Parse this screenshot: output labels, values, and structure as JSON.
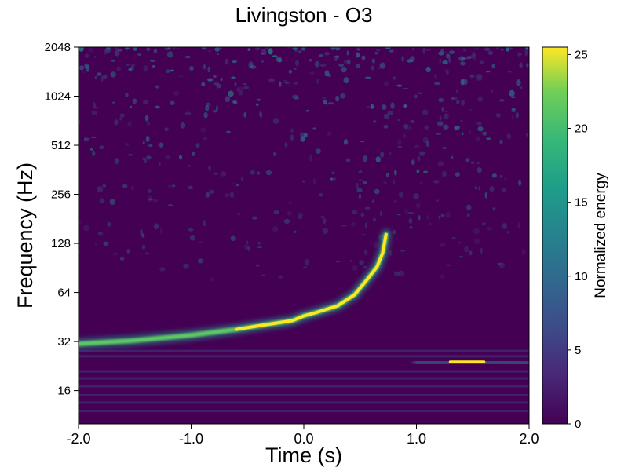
{
  "chart_data": {
    "type": "heatmap",
    "title": "Livingston - O3",
    "xlabel": "Time (s)",
    "ylabel": "Frequency (Hz)",
    "colorbar_label": "Normalized energy",
    "xlim": [
      -2.0,
      2.0
    ],
    "ylim": [
      10,
      2048
    ],
    "yscale": "log2",
    "x_ticks": [
      -2.0,
      -1.0,
      0.0,
      1.0,
      2.0
    ],
    "x_tick_labels": [
      "-2.0",
      "-1.0",
      "0.0",
      "1.0",
      "2.0"
    ],
    "y_ticks": [
      16,
      32,
      64,
      128,
      256,
      512,
      1024,
      2048
    ],
    "y_tick_labels": [
      "16",
      "32",
      "64",
      "128",
      "256",
      "512",
      "1024",
      "2048"
    ],
    "clim": [
      0,
      25.5
    ],
    "colorbar_ticks": [
      0,
      5,
      10,
      15,
      20,
      25
    ],
    "colorbar_tick_labels": [
      "0",
      "5",
      "10",
      "15",
      "20",
      "25"
    ],
    "colormap": "viridis",
    "grid": false,
    "features": [
      {
        "kind": "chirp",
        "points": [
          [
            -2.0,
            31
          ],
          [
            -1.5,
            32.5
          ],
          [
            -1.0,
            35
          ],
          [
            -0.6,
            38
          ],
          [
            -0.4,
            40
          ],
          [
            -0.1,
            43
          ],
          [
            0.0,
            46
          ],
          [
            0.1,
            48
          ],
          [
            0.3,
            53
          ],
          [
            0.45,
            62
          ],
          [
            0.55,
            75
          ],
          [
            0.65,
            92
          ],
          [
            0.7,
            112
          ],
          [
            0.73,
            145
          ]
        ]
      },
      {
        "kind": "glitch",
        "points": [
          [
            1.0,
            24
          ],
          [
            1.3,
            24
          ],
          [
            1.6,
            24
          ],
          [
            2.0,
            23.5
          ]
        ]
      }
    ]
  }
}
